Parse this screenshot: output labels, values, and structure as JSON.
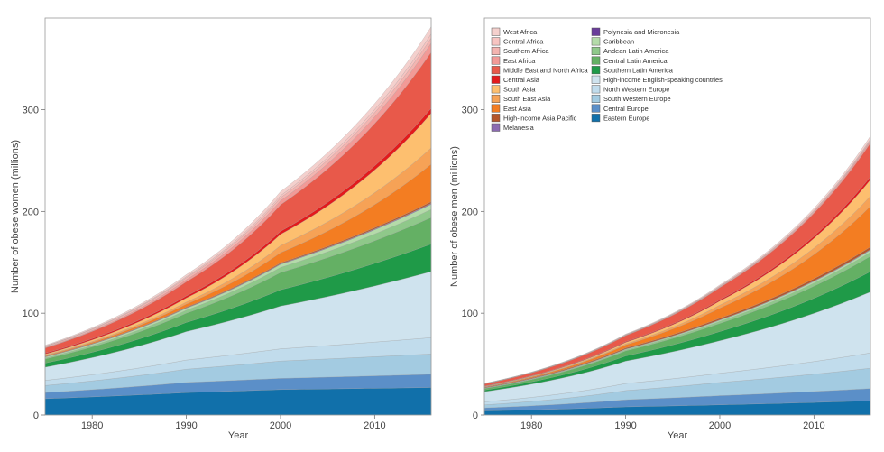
{
  "chart_data": [
    {
      "type": "area",
      "stacked": true,
      "xlabel": "Year",
      "ylabel": "Number of obese women (millions)",
      "xlim": [
        1975,
        2016
      ],
      "ylim": [
        0,
        390
      ],
      "xticks": [
        1980,
        1990,
        2000,
        2010
      ],
      "yticks": [
        0,
        100,
        200,
        300
      ],
      "grid": false,
      "legend": false,
      "series": [
        {
          "name": "Eastern Europe",
          "color": "#1170aa",
          "values": [
            16,
            22,
            25,
            27
          ]
        },
        {
          "name": "Central Europe",
          "color": "#5b8fc8",
          "values": [
            6,
            10,
            11,
            13
          ]
        },
        {
          "name": "South Western Europe",
          "color": "#a3cbe1",
          "values": [
            7,
            13,
            17,
            20
          ]
        },
        {
          "name": "North Western Europe",
          "color": "#c1dcec",
          "values": [
            5,
            9,
            12,
            16
          ]
        },
        {
          "name": "High-income English-speaking countries",
          "color": "#cfe3ee",
          "values": [
            13,
            28,
            42,
            65
          ]
        },
        {
          "name": "Southern Latin America",
          "color": "#1f9a48",
          "values": [
            4,
            9,
            16,
            27
          ]
        },
        {
          "name": "Central Latin America",
          "color": "#64b064",
          "values": [
            4,
            9,
            17,
            26
          ]
        },
        {
          "name": "Andean Latin America",
          "color": "#8fc88a",
          "values": [
            1,
            3,
            5,
            8
          ]
        },
        {
          "name": "Caribbean",
          "color": "#b4dba9",
          "values": [
            1,
            2,
            3,
            5
          ]
        },
        {
          "name": "Polynesia and Micronesia",
          "color": "#6a3d9a",
          "values": [
            0.1,
            0.2,
            0.3,
            0.4
          ]
        },
        {
          "name": "Melanesia",
          "color": "#8c6bb1",
          "values": [
            0.1,
            0.2,
            0.3,
            0.6
          ]
        },
        {
          "name": "High-income Asia Pacific",
          "color": "#b5562b",
          "values": [
            0.3,
            0.6,
            0.9,
            1.5
          ]
        },
        {
          "name": "East Asia",
          "color": "#f37d22",
          "values": [
            0.7,
            3,
            10,
            37
          ]
        },
        {
          "name": "South East Asia",
          "color": "#f6a256",
          "values": [
            0.6,
            2,
            7,
            16
          ]
        },
        {
          "name": "South Asia",
          "color": "#fdbf6f",
          "values": [
            1,
            4,
            11,
            34
          ]
        },
        {
          "name": "Central Asia",
          "color": "#e31a1c",
          "values": [
            1,
            2,
            3,
            5
          ]
        },
        {
          "name": "Middle East and North Africa",
          "color": "#e8594a",
          "values": [
            5,
            14,
            26,
            55
          ]
        },
        {
          "name": "East Africa",
          "color": "#f29a97",
          "values": [
            0.5,
            2,
            4,
            9
          ]
        },
        {
          "name": "Southern Africa",
          "color": "#f4b4b0",
          "values": [
            1,
            2,
            3,
            5
          ]
        },
        {
          "name": "Central Africa",
          "color": "#f7c4c1",
          "values": [
            0.4,
            1,
            2,
            4
          ]
        },
        {
          "name": "West Africa",
          "color": "#f4d0cd",
          "values": [
            0.8,
            2,
            4,
            7
          ]
        }
      ],
      "x": [
        1975,
        1990,
        2000,
        2016
      ]
    },
    {
      "type": "area",
      "stacked": true,
      "xlabel": "Year",
      "ylabel": "Number of obese men (millions)",
      "xlim": [
        1975,
        2016
      ],
      "ylim": [
        0,
        390
      ],
      "xticks": [
        1980,
        1990,
        2000,
        2010
      ],
      "yticks": [
        0,
        100,
        200,
        300
      ],
      "grid": false,
      "legend": true,
      "legend_position": "top-left",
      "series": [
        {
          "name": "Eastern Europe",
          "color": "#1170aa",
          "values": [
            4,
            8,
            10,
            14
          ]
        },
        {
          "name": "Central Europe",
          "color": "#5b8fc8",
          "values": [
            3,
            7,
            9,
            12
          ]
        },
        {
          "name": "South Western Europe",
          "color": "#a3cbe1",
          "values": [
            3,
            9,
            13,
            20
          ]
        },
        {
          "name": "North Western Europe",
          "color": "#c1dcec",
          "values": [
            3,
            7,
            9,
            15
          ]
        },
        {
          "name": "High-income English-speaking countries",
          "color": "#cfe3ee",
          "values": [
            10,
            22,
            32,
            60
          ]
        },
        {
          "name": "Southern Latin America",
          "color": "#1f9a48",
          "values": [
            1.5,
            5,
            9,
            20
          ]
        },
        {
          "name": "Central Latin America",
          "color": "#64b064",
          "values": [
            1.5,
            5,
            8,
            15
          ]
        },
        {
          "name": "Andean Latin America",
          "color": "#8fc88a",
          "values": [
            0.3,
            1,
            2,
            4
          ]
        },
        {
          "name": "Caribbean",
          "color": "#b4dba9",
          "values": [
            0.3,
            0.7,
            1.2,
            2
          ]
        },
        {
          "name": "Polynesia and Micronesia",
          "color": "#6a3d9a",
          "values": [
            0.05,
            0.1,
            0.15,
            0.3
          ]
        },
        {
          "name": "Melanesia",
          "color": "#8c6bb1",
          "values": [
            0.05,
            0.1,
            0.2,
            0.4
          ]
        },
        {
          "name": "High-income Asia Pacific",
          "color": "#b5562b",
          "values": [
            0.5,
            1,
            1.5,
            2.5
          ]
        },
        {
          "name": "East Asia",
          "color": "#f37d22",
          "values": [
            0.5,
            3,
            10,
            40
          ]
        },
        {
          "name": "South East Asia",
          "color": "#f6a256",
          "values": [
            0.2,
            1,
            3,
            10
          ]
        },
        {
          "name": "South Asia",
          "color": "#fdbf6f",
          "values": [
            0.3,
            1.5,
            4,
            16
          ]
        },
        {
          "name": "Central Asia",
          "color": "#e31a1c",
          "values": [
            0.3,
            0.7,
            1.2,
            3
          ]
        },
        {
          "name": "Middle East and North Africa",
          "color": "#e8594a",
          "values": [
            2,
            6,
            12,
            33
          ]
        },
        {
          "name": "East Africa",
          "color": "#f29a97",
          "values": [
            0.1,
            0.3,
            0.6,
            2
          ]
        },
        {
          "name": "Southern Africa",
          "color": "#f4b4b0",
          "values": [
            0.2,
            0.4,
            0.6,
            1
          ]
        },
        {
          "name": "Central Africa",
          "color": "#f7c4c1",
          "values": [
            0.1,
            0.2,
            0.4,
            1
          ]
        },
        {
          "name": "West Africa",
          "color": "#f4d0cd",
          "values": [
            0.2,
            0.5,
            1,
            3
          ]
        }
      ],
      "x": [
        1975,
        1990,
        2000,
        2016
      ]
    }
  ],
  "legend_items": [
    {
      "name": "West Africa",
      "color": "#f4d0cd"
    },
    {
      "name": "Central Africa",
      "color": "#f7c4c1"
    },
    {
      "name": "Southern Africa",
      "color": "#f4b4b0"
    },
    {
      "name": "East Africa",
      "color": "#f29a97"
    },
    {
      "name": "Middle East and North Africa",
      "color": "#e8594a"
    },
    {
      "name": "Central Asia",
      "color": "#e31a1c"
    },
    {
      "name": "South Asia",
      "color": "#fdbf6f"
    },
    {
      "name": "South East Asia",
      "color": "#f6a256"
    },
    {
      "name": "East Asia",
      "color": "#f37d22"
    },
    {
      "name": "High-income Asia Pacific",
      "color": "#b5562b"
    },
    {
      "name": "Melanesia",
      "color": "#8c6bb1"
    },
    {
      "name": "Polynesia and Micronesia",
      "color": "#6a3d9a"
    },
    {
      "name": "Caribbean",
      "color": "#b4dba9"
    },
    {
      "name": "Andean Latin America",
      "color": "#8fc88a"
    },
    {
      "name": "Central Latin America",
      "color": "#64b064"
    },
    {
      "name": "Southern Latin America",
      "color": "#1f9a48"
    },
    {
      "name": "High-income English-speaking countries",
      "color": "#cfe3ee"
    },
    {
      "name": "North Western Europe",
      "color": "#c1dcec"
    },
    {
      "name": "South Western Europe",
      "color": "#a3cbe1"
    },
    {
      "name": "Central Europe",
      "color": "#5b8fc8"
    },
    {
      "name": "Eastern Europe",
      "color": "#1170aa"
    }
  ]
}
